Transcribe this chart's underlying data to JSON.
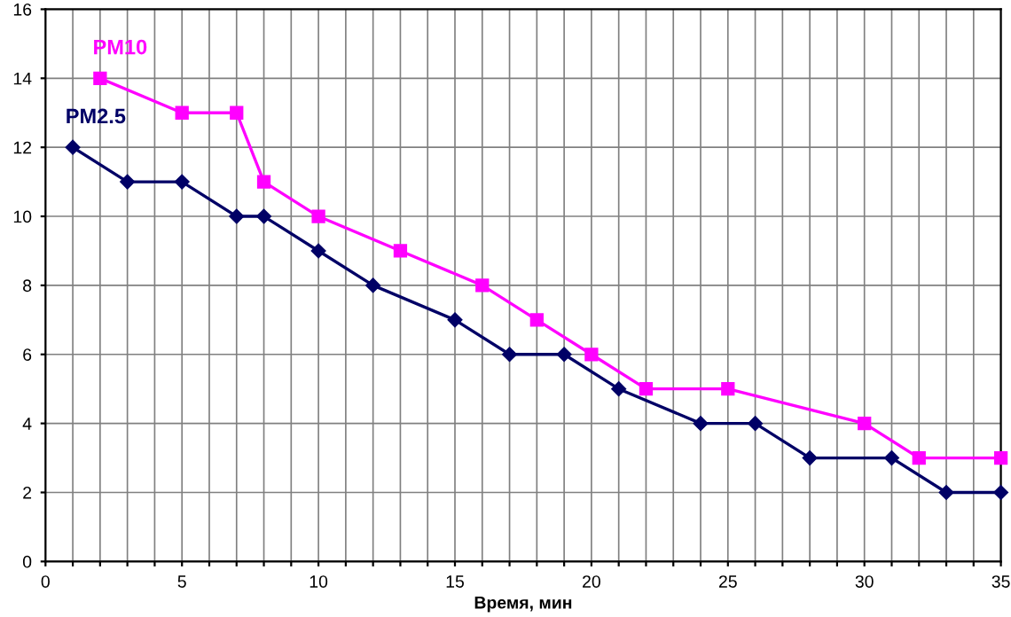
{
  "chart_data": {
    "type": "line",
    "xlabel": "Время, мин",
    "series": [
      {
        "name": "PM2.5",
        "color": "#000066",
        "marker": "diamond",
        "x": [
          1,
          3,
          5,
          7,
          8,
          10,
          12,
          15,
          17,
          19,
          21,
          24,
          26,
          28,
          31,
          33,
          35
        ],
        "values": [
          12,
          11,
          11,
          10,
          10,
          9,
          8,
          7,
          6,
          6,
          5,
          4,
          4,
          3,
          3,
          2,
          2
        ]
      },
      {
        "name": "PM10",
        "color": "#ff00ff",
        "marker": "square",
        "x": [
          2,
          5,
          7,
          8,
          10,
          13,
          16,
          18,
          20,
          22,
          25,
          30,
          32,
          35
        ],
        "values": [
          14,
          13,
          13,
          11,
          10,
          9,
          8,
          7,
          6,
          5,
          5,
          4,
          3,
          3
        ]
      }
    ],
    "xlim": [
      0,
      35
    ],
    "ylim": [
      0,
      16
    ],
    "xticks": [
      0,
      {
        "value": 1,
        "label": null
      },
      {
        "value": 2,
        "label": null
      },
      {
        "value": 3,
        "label": null
      },
      {
        "value": 4,
        "label": null
      },
      5,
      {
        "value": 6,
        "label": null
      },
      {
        "value": 7,
        "label": null
      },
      {
        "value": 8,
        "label": null
      },
      {
        "value": 9,
        "label": null
      },
      10,
      {
        "value": 11,
        "label": null
      },
      {
        "value": 12,
        "label": null
      },
      {
        "value": 13,
        "label": null
      },
      {
        "value": 14,
        "label": null
      },
      15,
      {
        "value": 16,
        "label": null
      },
      {
        "value": 17,
        "label": null
      },
      {
        "value": 18,
        "label": null
      },
      {
        "value": 19,
        "label": null
      },
      20,
      {
        "value": 21,
        "label": null
      },
      {
        "value": 22,
        "label": null
      },
      {
        "value": 23,
        "label": null
      },
      {
        "value": 24,
        "label": null
      },
      25,
      {
        "value": 26,
        "label": null
      },
      {
        "value": 27,
        "label": null
      },
      {
        "value": 28,
        "label": null
      },
      {
        "value": 29,
        "label": null
      },
      30,
      {
        "value": 31,
        "label": null
      },
      {
        "value": 32,
        "label": null
      },
      {
        "value": 33,
        "label": null
      },
      {
        "value": 34,
        "label": null
      },
      35
    ],
    "yticks": [
      0,
      2,
      4,
      6,
      8,
      10,
      12,
      14,
      16
    ],
    "grid": true,
    "line_style": "solid"
  }
}
